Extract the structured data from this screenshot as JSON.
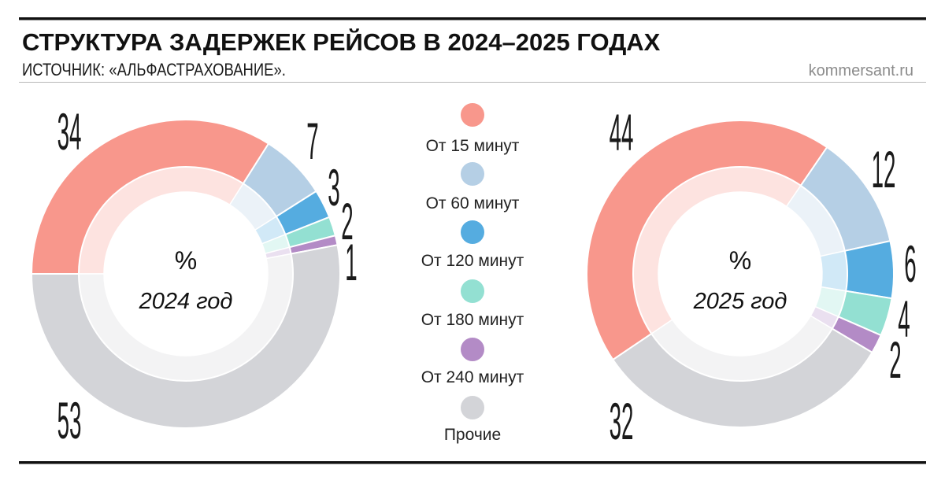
{
  "header": {
    "title": "СТРУКТУРА ЗАДЕРЖЕК РЕЙСОВ В 2024–2025 ГОДАХ",
    "source": "ИСТОЧНИК: «АЛЬФАСТРАХОВАНИЕ».",
    "site": "kommersant.ru"
  },
  "palette": [
    "#f8978c",
    "#b5cfe5",
    "#55ace0",
    "#93e0d2",
    "#b38bc6",
    "#d3d4d8"
  ],
  "chart_data": [
    {
      "type": "pie",
      "title": "2024 год",
      "unit": "%",
      "categories": [
        "От 15 минут",
        "От 60 минут",
        "От 120 минут",
        "От 180 минут",
        "От 240 минут",
        "Прочие"
      ],
      "values": [
        34,
        7,
        3,
        2,
        1,
        53
      ]
    },
    {
      "type": "pie",
      "title": "2025 год",
      "unit": "%",
      "categories": [
        "От 15 минут",
        "От 60 минут",
        "От 120 минут",
        "От 180 минут",
        "От 240 минут",
        "Прочие"
      ],
      "values": [
        44,
        12,
        6,
        4,
        2,
        32
      ]
    }
  ]
}
